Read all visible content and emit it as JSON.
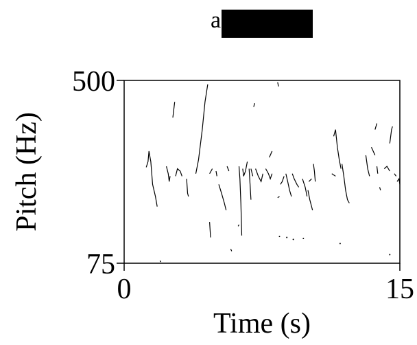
{
  "chart_data": {
    "type": "scatter",
    "title_visible_text": "a",
    "title_redacted": true,
    "xlabel": "Time (s)",
    "ylabel": "Pitch (Hz)",
    "xlim": [
      0,
      15
    ],
    "ylim": [
      75,
      500
    ],
    "y_scale": "log",
    "x_ticks": [
      "0",
      "15"
    ],
    "y_ticks": [
      "75",
      "500"
    ],
    "grid": false,
    "legend": "none",
    "line_color": "#000000",
    "segments": [
      [
        [
          1.2,
          203
        ],
        [
          1.3,
          215
        ],
        [
          1.35,
          240
        ],
        [
          1.45,
          215
        ],
        [
          1.55,
          170
        ],
        [
          1.7,
          150
        ],
        [
          1.8,
          135
        ]
      ],
      [
        [
          1.95,
          77
        ],
        [
          2.0,
          76
        ]
      ],
      [
        [
          2.3,
          205
        ],
        [
          2.4,
          190
        ],
        [
          2.45,
          175
        ],
        [
          2.5,
          185
        ]
      ],
      [
        [
          2.65,
          340
        ],
        [
          2.75,
          400
        ]
      ],
      [
        [
          2.8,
          185
        ],
        [
          2.9,
          200
        ],
        [
          3.05,
          195
        ],
        [
          3.15,
          185
        ]
      ],
      [
        [
          3.4,
          180
        ],
        [
          3.45,
          155
        ],
        [
          3.5,
          150
        ]
      ],
      [
        [
          3.9,
          190
        ],
        [
          4.05,
          220
        ],
        [
          4.25,
          300
        ],
        [
          4.4,
          400
        ],
        [
          4.55,
          480
        ]
      ],
      [
        [
          4.65,
          190
        ],
        [
          4.8,
          200
        ]
      ],
      [
        [
          4.65,
          115
        ],
        [
          4.7,
          98
        ]
      ],
      [
        [
          5.0,
          195
        ],
        [
          5.05,
          185
        ]
      ],
      [
        [
          5.15,
          170
        ],
        [
          5.3,
          155
        ],
        [
          5.45,
          140
        ],
        [
          5.55,
          130
        ]
      ],
      [
        [
          5.6,
          205
        ],
        [
          5.7,
          195
        ]
      ],
      [
        [
          5.8,
          87
        ],
        [
          5.85,
          85
        ]
      ],
      [
        [
          6.2,
          110
        ],
        [
          6.25,
          112
        ]
      ],
      [
        [
          6.25,
          205
        ],
        [
          6.3,
          180
        ],
        [
          6.35,
          140
        ],
        [
          6.4,
          100
        ]
      ],
      [
        [
          6.45,
          200
        ],
        [
          6.5,
          185
        ],
        [
          6.6,
          195
        ],
        [
          6.7,
          215
        ]
      ],
      [
        [
          6.8,
          200
        ],
        [
          6.85,
          170
        ],
        [
          6.9,
          145
        ]
      ],
      [
        [
          6.9,
          200
        ],
        [
          7.0,
          185
        ]
      ],
      [
        [
          7.05,
          380
        ],
        [
          7.1,
          395
        ]
      ],
      [
        [
          7.15,
          200
        ],
        [
          7.3,
          185
        ],
        [
          7.45,
          175
        ],
        [
          7.55,
          190
        ]
      ],
      [
        [
          7.7,
          200
        ],
        [
          7.85,
          190
        ],
        [
          7.95,
          180
        ],
        [
          8.05,
          190
        ]
      ],
      [
        [
          7.9,
          225
        ],
        [
          8.05,
          240
        ]
      ],
      [
        [
          8.35,
          148
        ],
        [
          8.45,
          150
        ]
      ],
      [
        [
          8.35,
          490
        ],
        [
          8.4,
          470
        ]
      ],
      [
        [
          8.5,
          170
        ],
        [
          8.6,
          175
        ],
        [
          8.7,
          185
        ]
      ],
      [
        [
          8.8,
          190
        ],
        [
          8.9,
          175
        ],
        [
          9.0,
          160
        ],
        [
          9.1,
          150
        ]
      ],
      [
        [
          9.15,
          190
        ],
        [
          9.25,
          180
        ],
        [
          9.4,
          170
        ],
        [
          9.5,
          165
        ]
      ],
      [
        [
          9.7,
          180
        ],
        [
          9.85,
          165
        ],
        [
          9.95,
          150
        ]
      ],
      [
        [
          10.0,
          160
        ],
        [
          10.1,
          145
        ],
        [
          10.25,
          130
        ]
      ],
      [
        [
          10.05,
          175
        ],
        [
          10.2,
          180
        ]
      ],
      [
        [
          10.3,
          210
        ],
        [
          10.35,
          195
        ],
        [
          10.4,
          175
        ]
      ],
      [
        [
          11.3,
          190
        ],
        [
          11.5,
          185
        ]
      ],
      [
        [
          11.4,
          280
        ],
        [
          11.5,
          300
        ],
        [
          11.6,
          250
        ],
        [
          11.7,
          220
        ],
        [
          11.8,
          200
        ]
      ],
      [
        [
          11.85,
          210
        ],
        [
          11.95,
          185
        ],
        [
          12.05,
          160
        ],
        [
          12.15,
          145
        ],
        [
          12.25,
          140
        ]
      ],
      [
        [
          13.15,
          230
        ],
        [
          13.25,
          200
        ],
        [
          13.35,
          185
        ]
      ],
      [
        [
          13.45,
          250
        ],
        [
          13.55,
          240
        ],
        [
          13.65,
          230
        ]
      ],
      [
        [
          13.65,
          300
        ],
        [
          13.75,
          320
        ]
      ],
      [
        [
          13.75,
          205
        ],
        [
          13.8,
          190
        ]
      ],
      [
        [
          13.9,
          165
        ],
        [
          13.95,
          160
        ]
      ],
      [
        [
          14.15,
          200
        ],
        [
          14.3,
          205
        ],
        [
          14.45,
          195
        ]
      ],
      [
        [
          14.45,
          260
        ],
        [
          14.55,
          300
        ],
        [
          14.6,
          310
        ]
      ],
      [
        [
          14.7,
          190
        ],
        [
          14.8,
          185
        ]
      ],
      [
        [
          14.85,
          175
        ],
        [
          14.95,
          180
        ],
        [
          15.0,
          170
        ]
      ]
    ],
    "points": [
      [
        8.45,
        99
      ],
      [
        8.85,
        98
      ],
      [
        9.2,
        96
      ],
      [
        9.75,
        97
      ],
      [
        11.75,
        92
      ],
      [
        14.45,
        82
      ]
    ]
  }
}
